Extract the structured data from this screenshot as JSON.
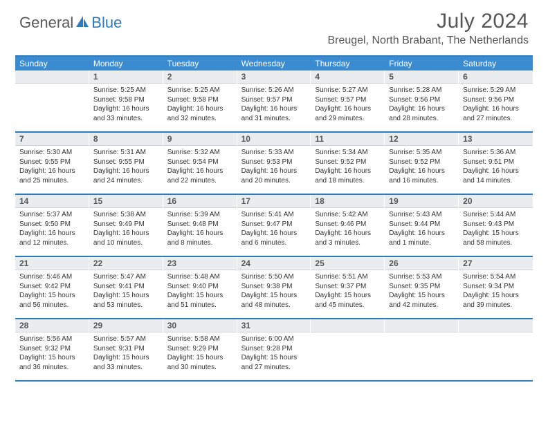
{
  "logo": {
    "part1": "General",
    "part2": "Blue"
  },
  "title": {
    "monthYear": "July 2024",
    "location": "Breugel, North Brabant, The Netherlands"
  },
  "colors": {
    "accent": "#2b7bbf",
    "headerBar": "#3a8bd0",
    "dayHeader": "#e9edef"
  },
  "weekdays": [
    "Sunday",
    "Monday",
    "Tuesday",
    "Wednesday",
    "Thursday",
    "Friday",
    "Saturday"
  ],
  "weeks": [
    [
      {
        "n": "",
        "lines": []
      },
      {
        "n": "1",
        "lines": [
          "Sunrise: 5:25 AM",
          "Sunset: 9:58 PM",
          "Daylight: 16 hours and 33 minutes."
        ]
      },
      {
        "n": "2",
        "lines": [
          "Sunrise: 5:25 AM",
          "Sunset: 9:58 PM",
          "Daylight: 16 hours and 32 minutes."
        ]
      },
      {
        "n": "3",
        "lines": [
          "Sunrise: 5:26 AM",
          "Sunset: 9:57 PM",
          "Daylight: 16 hours and 31 minutes."
        ]
      },
      {
        "n": "4",
        "lines": [
          "Sunrise: 5:27 AM",
          "Sunset: 9:57 PM",
          "Daylight: 16 hours and 29 minutes."
        ]
      },
      {
        "n": "5",
        "lines": [
          "Sunrise: 5:28 AM",
          "Sunset: 9:56 PM",
          "Daylight: 16 hours and 28 minutes."
        ]
      },
      {
        "n": "6",
        "lines": [
          "Sunrise: 5:29 AM",
          "Sunset: 9:56 PM",
          "Daylight: 16 hours and 27 minutes."
        ]
      }
    ],
    [
      {
        "n": "7",
        "lines": [
          "Sunrise: 5:30 AM",
          "Sunset: 9:55 PM",
          "Daylight: 16 hours and 25 minutes."
        ]
      },
      {
        "n": "8",
        "lines": [
          "Sunrise: 5:31 AM",
          "Sunset: 9:55 PM",
          "Daylight: 16 hours and 24 minutes."
        ]
      },
      {
        "n": "9",
        "lines": [
          "Sunrise: 5:32 AM",
          "Sunset: 9:54 PM",
          "Daylight: 16 hours and 22 minutes."
        ]
      },
      {
        "n": "10",
        "lines": [
          "Sunrise: 5:33 AM",
          "Sunset: 9:53 PM",
          "Daylight: 16 hours and 20 minutes."
        ]
      },
      {
        "n": "11",
        "lines": [
          "Sunrise: 5:34 AM",
          "Sunset: 9:52 PM",
          "Daylight: 16 hours and 18 minutes."
        ]
      },
      {
        "n": "12",
        "lines": [
          "Sunrise: 5:35 AM",
          "Sunset: 9:52 PM",
          "Daylight: 16 hours and 16 minutes."
        ]
      },
      {
        "n": "13",
        "lines": [
          "Sunrise: 5:36 AM",
          "Sunset: 9:51 PM",
          "Daylight: 16 hours and 14 minutes."
        ]
      }
    ],
    [
      {
        "n": "14",
        "lines": [
          "Sunrise: 5:37 AM",
          "Sunset: 9:50 PM",
          "Daylight: 16 hours and 12 minutes."
        ]
      },
      {
        "n": "15",
        "lines": [
          "Sunrise: 5:38 AM",
          "Sunset: 9:49 PM",
          "Daylight: 16 hours and 10 minutes."
        ]
      },
      {
        "n": "16",
        "lines": [
          "Sunrise: 5:39 AM",
          "Sunset: 9:48 PM",
          "Daylight: 16 hours and 8 minutes."
        ]
      },
      {
        "n": "17",
        "lines": [
          "Sunrise: 5:41 AM",
          "Sunset: 9:47 PM",
          "Daylight: 16 hours and 6 minutes."
        ]
      },
      {
        "n": "18",
        "lines": [
          "Sunrise: 5:42 AM",
          "Sunset: 9:46 PM",
          "Daylight: 16 hours and 3 minutes."
        ]
      },
      {
        "n": "19",
        "lines": [
          "Sunrise: 5:43 AM",
          "Sunset: 9:44 PM",
          "Daylight: 16 hours and 1 minute."
        ]
      },
      {
        "n": "20",
        "lines": [
          "Sunrise: 5:44 AM",
          "Sunset: 9:43 PM",
          "Daylight: 15 hours and 58 minutes."
        ]
      }
    ],
    [
      {
        "n": "21",
        "lines": [
          "Sunrise: 5:46 AM",
          "Sunset: 9:42 PM",
          "Daylight: 15 hours and 56 minutes."
        ]
      },
      {
        "n": "22",
        "lines": [
          "Sunrise: 5:47 AM",
          "Sunset: 9:41 PM",
          "Daylight: 15 hours and 53 minutes."
        ]
      },
      {
        "n": "23",
        "lines": [
          "Sunrise: 5:48 AM",
          "Sunset: 9:40 PM",
          "Daylight: 15 hours and 51 minutes."
        ]
      },
      {
        "n": "24",
        "lines": [
          "Sunrise: 5:50 AM",
          "Sunset: 9:38 PM",
          "Daylight: 15 hours and 48 minutes."
        ]
      },
      {
        "n": "25",
        "lines": [
          "Sunrise: 5:51 AM",
          "Sunset: 9:37 PM",
          "Daylight: 15 hours and 45 minutes."
        ]
      },
      {
        "n": "26",
        "lines": [
          "Sunrise: 5:53 AM",
          "Sunset: 9:35 PM",
          "Daylight: 15 hours and 42 minutes."
        ]
      },
      {
        "n": "27",
        "lines": [
          "Sunrise: 5:54 AM",
          "Sunset: 9:34 PM",
          "Daylight: 15 hours and 39 minutes."
        ]
      }
    ],
    [
      {
        "n": "28",
        "lines": [
          "Sunrise: 5:56 AM",
          "Sunset: 9:32 PM",
          "Daylight: 15 hours and 36 minutes."
        ]
      },
      {
        "n": "29",
        "lines": [
          "Sunrise: 5:57 AM",
          "Sunset: 9:31 PM",
          "Daylight: 15 hours and 33 minutes."
        ]
      },
      {
        "n": "30",
        "lines": [
          "Sunrise: 5:58 AM",
          "Sunset: 9:29 PM",
          "Daylight: 15 hours and 30 minutes."
        ]
      },
      {
        "n": "31",
        "lines": [
          "Sunrise: 6:00 AM",
          "Sunset: 9:28 PM",
          "Daylight: 15 hours and 27 minutes."
        ]
      },
      {
        "n": "",
        "lines": []
      },
      {
        "n": "",
        "lines": []
      },
      {
        "n": "",
        "lines": []
      }
    ]
  ]
}
